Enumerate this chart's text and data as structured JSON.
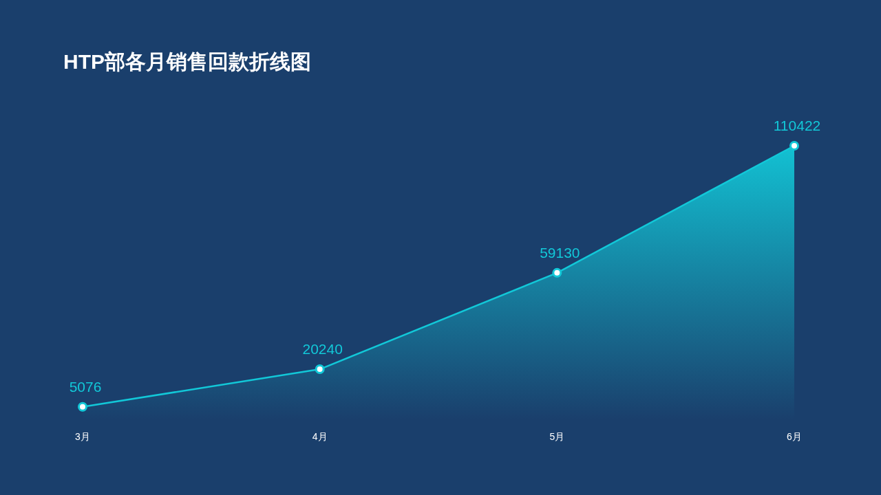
{
  "chart_data": {
    "type": "area",
    "title": "HTP部各月销售回款折线图",
    "categories": [
      "3月",
      "4月",
      "5月",
      "6月"
    ],
    "values": [
      5076,
      20240,
      59130,
      110422
    ],
    "color": "#12c8d8",
    "data_labels": true,
    "marker": "circle",
    "grid": false
  }
}
